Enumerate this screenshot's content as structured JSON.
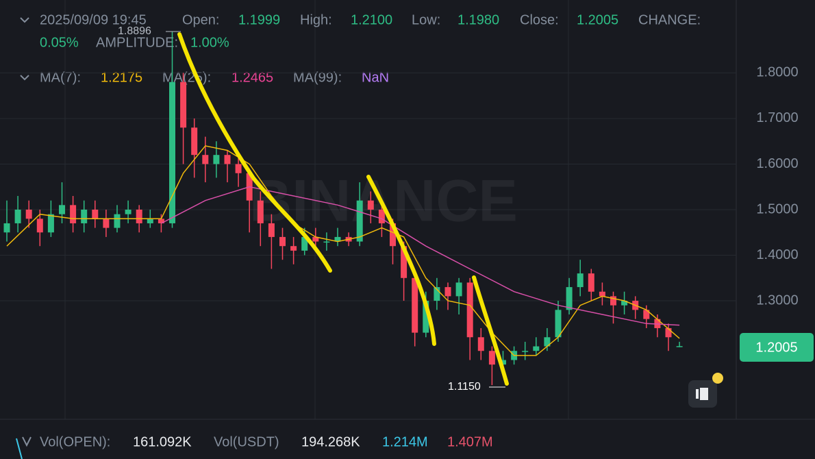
{
  "header": {
    "datetime": "2025/09/09 19:45",
    "stats": [
      {
        "label": "Open:",
        "value": "1.1999"
      },
      {
        "label": "High:",
        "value": "1.2100"
      },
      {
        "label": "Low:",
        "value": "1.1980"
      },
      {
        "label": "Close:",
        "value": "1.2005"
      },
      {
        "label": "CHANGE:",
        "value": "0.05%"
      },
      {
        "label": "AMPLITUDE:",
        "value": "1.00%"
      }
    ]
  },
  "ma_legend": [
    {
      "label": "MA(7):",
      "value": "1.2175"
    },
    {
      "label": "MA(25):",
      "value": "1.2465"
    },
    {
      "label": "MA(99):",
      "value": "NaN"
    }
  ],
  "watermark": "BINANCE",
  "price_badge": "1.2005",
  "volume": [
    {
      "label": "Vol(OPEN):",
      "value": "161.092K"
    },
    {
      "label": "Vol(USDT)",
      "value": "194.268K"
    },
    {
      "value": "1.214M"
    },
    {
      "value": "1.407M"
    }
  ],
  "chart_data": {
    "type": "candlestick",
    "up_color": "#2ebd85",
    "down_color": "#f6465d",
    "ylim": [
      1.04,
      1.96
    ],
    "yticks": [
      {
        "value": 1.3,
        "label": "1.3000"
      },
      {
        "value": 1.4,
        "label": "1.4000"
      },
      {
        "value": 1.5,
        "label": "1.5000"
      },
      {
        "value": 1.6,
        "label": "1.6000"
      },
      {
        "value": 1.7,
        "label": "1.7000"
      },
      {
        "value": 1.8,
        "label": "1.8000"
      }
    ],
    "grid": true,
    "candles": [
      [
        1.45,
        1.52,
        1.43,
        1.47
      ],
      [
        1.47,
        1.53,
        1.45,
        1.5
      ],
      [
        1.5,
        1.52,
        1.46,
        1.48
      ],
      [
        1.48,
        1.5,
        1.42,
        1.45
      ],
      [
        1.45,
        1.52,
        1.44,
        1.49
      ],
      [
        1.49,
        1.56,
        1.47,
        1.51
      ],
      [
        1.51,
        1.53,
        1.45,
        1.47
      ],
      [
        1.47,
        1.52,
        1.45,
        1.5
      ],
      [
        1.5,
        1.52,
        1.46,
        1.48
      ],
      [
        1.48,
        1.5,
        1.44,
        1.46
      ],
      [
        1.46,
        1.51,
        1.45,
        1.49
      ],
      [
        1.49,
        1.52,
        1.47,
        1.5
      ],
      [
        1.5,
        1.51,
        1.45,
        1.47
      ],
      [
        1.47,
        1.5,
        1.46,
        1.48
      ],
      [
        1.48,
        1.49,
        1.45,
        1.47
      ],
      [
        1.47,
        1.89,
        1.46,
        1.78
      ],
      [
        1.78,
        1.8,
        1.6,
        1.68
      ],
      [
        1.68,
        1.7,
        1.57,
        1.62
      ],
      [
        1.62,
        1.66,
        1.56,
        1.6
      ],
      [
        1.6,
        1.65,
        1.57,
        1.62
      ],
      [
        1.62,
        1.63,
        1.56,
        1.6
      ],
      [
        1.6,
        1.62,
        1.55,
        1.58
      ],
      [
        1.58,
        1.59,
        1.45,
        1.52
      ],
      [
        1.52,
        1.54,
        1.42,
        1.47
      ],
      [
        1.47,
        1.49,
        1.37,
        1.44
      ],
      [
        1.44,
        1.46,
        1.39,
        1.42
      ],
      [
        1.42,
        1.44,
        1.38,
        1.41
      ],
      [
        1.41,
        1.46,
        1.4,
        1.44
      ],
      [
        1.44,
        1.46,
        1.41,
        1.43
      ],
      [
        1.43,
        1.45,
        1.41,
        1.43
      ],
      [
        1.43,
        1.46,
        1.42,
        1.44
      ],
      [
        1.44,
        1.45,
        1.42,
        1.43
      ],
      [
        1.43,
        1.56,
        1.42,
        1.52
      ],
      [
        1.52,
        1.54,
        1.47,
        1.5
      ],
      [
        1.5,
        1.51,
        1.44,
        1.47
      ],
      [
        1.47,
        1.48,
        1.38,
        1.42
      ],
      [
        1.42,
        1.43,
        1.3,
        1.35
      ],
      [
        1.35,
        1.36,
        1.2,
        1.23
      ],
      [
        1.23,
        1.32,
        1.22,
        1.3
      ],
      [
        1.3,
        1.35,
        1.28,
        1.33
      ],
      [
        1.33,
        1.34,
        1.28,
        1.31
      ],
      [
        1.31,
        1.35,
        1.27,
        1.34
      ],
      [
        1.34,
        1.35,
        1.17,
        1.22
      ],
      [
        1.22,
        1.24,
        1.17,
        1.19
      ],
      [
        1.19,
        1.2,
        1.115,
        1.16
      ],
      [
        1.16,
        1.19,
        1.14,
        1.17
      ],
      [
        1.17,
        1.2,
        1.16,
        1.19
      ],
      [
        1.19,
        1.21,
        1.17,
        1.19
      ],
      [
        1.19,
        1.22,
        1.18,
        1.2
      ],
      [
        1.2,
        1.24,
        1.19,
        1.22
      ],
      [
        1.22,
        1.3,
        1.21,
        1.28
      ],
      [
        1.28,
        1.35,
        1.27,
        1.33
      ],
      [
        1.33,
        1.39,
        1.31,
        1.36
      ],
      [
        1.36,
        1.37,
        1.3,
        1.32
      ],
      [
        1.32,
        1.34,
        1.29,
        1.31
      ],
      [
        1.31,
        1.32,
        1.25,
        1.29
      ],
      [
        1.29,
        1.32,
        1.27,
        1.3
      ],
      [
        1.3,
        1.31,
        1.26,
        1.28
      ],
      [
        1.28,
        1.29,
        1.24,
        1.26
      ],
      [
        1.26,
        1.27,
        1.22,
        1.24
      ],
      [
        1.24,
        1.25,
        1.19,
        1.22
      ],
      [
        1.1999,
        1.21,
        1.198,
        1.2005
      ]
    ],
    "lines": [
      {
        "color": "#f0b90b",
        "x": [
          0,
          3,
          6,
          9,
          12,
          14,
          16,
          18,
          20,
          22,
          24,
          26,
          28,
          30,
          32,
          34,
          36,
          38,
          40,
          42,
          44,
          46,
          48,
          50,
          52,
          54,
          56,
          58,
          61
        ],
        "values": [
          1.42,
          1.49,
          1.48,
          1.48,
          1.48,
          1.48,
          1.58,
          1.64,
          1.63,
          1.6,
          1.53,
          1.47,
          1.44,
          1.43,
          1.44,
          1.46,
          1.44,
          1.35,
          1.3,
          1.29,
          1.23,
          1.18,
          1.18,
          1.22,
          1.29,
          1.31,
          1.3,
          1.28,
          1.2175
        ]
      },
      {
        "color": "#d84fa8",
        "x": [
          14,
          18,
          22,
          26,
          30,
          34,
          38,
          42,
          46,
          50,
          54,
          58,
          61
        ],
        "values": [
          1.47,
          1.52,
          1.55,
          1.53,
          1.51,
          1.48,
          1.42,
          1.37,
          1.32,
          1.29,
          1.27,
          1.25,
          1.2465
        ]
      }
    ],
    "annotations": [
      "1.8896",
      "1.1150"
    ]
  }
}
